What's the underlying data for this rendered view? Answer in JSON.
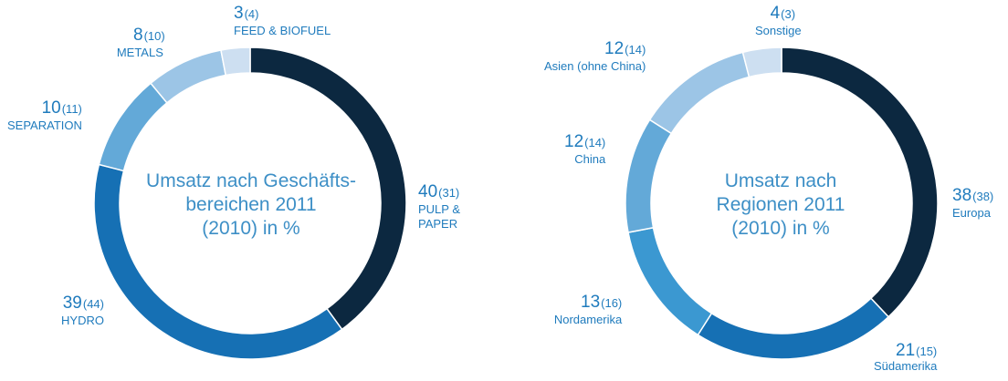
{
  "chart_data": [
    {
      "type": "donut",
      "title": "Umsatz nach Geschäfts-\nbereichen 2011\n(2010) in %",
      "title_lines": [
        "Umsatz nach Geschäfts-",
        "bereichen 2011",
        "(2010) in %"
      ],
      "categories": [
        "PULP & PAPER",
        "HYDRO",
        "SEPARATION",
        "METALS",
        "FEED & BIOFUEL"
      ],
      "values": [
        40,
        39,
        10,
        8,
        3
      ],
      "previous_values": [
        31,
        44,
        11,
        10,
        4
      ],
      "colors": [
        "#0c2840",
        "#1670b4",
        "#63a9d8",
        "#9cc5e6",
        "#cddff1"
      ],
      "labels": [
        {
          "value": "40",
          "prev": "(31)",
          "name": "PULP &\nPAPER"
        },
        {
          "value": "39",
          "prev": "(44)",
          "name": "HYDRO"
        },
        {
          "value": "10",
          "prev": "(11)",
          "name": "SEPARATION"
        },
        {
          "value": "8",
          "prev": "(10)",
          "name": "METALS"
        },
        {
          "value": "3",
          "prev": "(4)",
          "name": "FEED & BIOFUEL"
        }
      ]
    },
    {
      "type": "donut",
      "title": "Umsatz nach\nRegionen 2011\n(2010) in %",
      "title_lines": [
        "Umsatz nach",
        "Regionen 2011",
        "(2010) in %"
      ],
      "categories": [
        "Europa",
        "Südamerika",
        "Nordamerika",
        "China",
        "Asien (ohne China)",
        "Sonstige"
      ],
      "values": [
        38,
        21,
        13,
        12,
        12,
        4
      ],
      "previous_values": [
        38,
        15,
        16,
        14,
        14,
        3
      ],
      "colors": [
        "#0c2840",
        "#1670b4",
        "#3b98d1",
        "#63a9d8",
        "#9cc5e6",
        "#cddff1"
      ],
      "labels": [
        {
          "value": "38",
          "prev": "(38)",
          "name": "Europa"
        },
        {
          "value": "21",
          "prev": "(15)",
          "name": "Südamerika"
        },
        {
          "value": "13",
          "prev": "(16)",
          "name": "Nordamerika"
        },
        {
          "value": "12",
          "prev": "(14)",
          "name": "China"
        },
        {
          "value": "12",
          "prev": "(14)",
          "name": "Asien (ohne China)"
        },
        {
          "value": "4",
          "prev": "(3)",
          "name": "Sonstige"
        }
      ]
    }
  ]
}
